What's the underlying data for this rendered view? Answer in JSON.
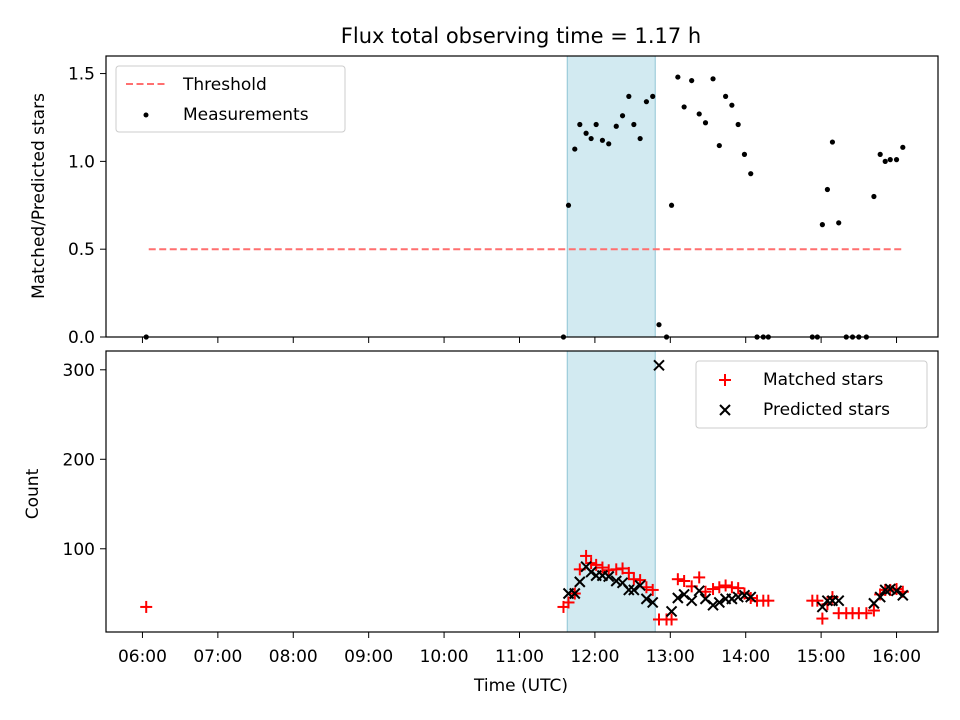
{
  "title": "Flux total observing time = 1.17 h",
  "colors": {
    "threshold": "#ff6f6f",
    "measurement": "#000000",
    "matched": "#ff0000",
    "predicted": "#000000",
    "highlight": "#add8e6"
  },
  "chart_data": [
    {
      "type": "scatter",
      "panel": "top",
      "xlabel": "",
      "ylabel": "Matched/Predicted stars",
      "xlim": [
        "05:31",
        "16:33"
      ],
      "ylim": [
        0.0,
        1.6
      ],
      "yticks": [
        0.0,
        0.5,
        1.0,
        1.5
      ],
      "ytick_labels": [
        "0.0",
        "0.5",
        "1.0",
        "1.5"
      ],
      "legend_position": "upper left",
      "highlight_span": [
        "11:38",
        "12:48"
      ],
      "threshold": {
        "name": "Threshold",
        "value": 0.5,
        "x_range": [
          "06:05",
          "16:05"
        ],
        "style": "dashed"
      },
      "series": [
        {
          "name": "Measurements",
          "points": [
            [
              "06:03",
              0.0
            ],
            [
              "11:35",
              0.0
            ],
            [
              "11:39",
              0.75
            ],
            [
              "11:44",
              1.07
            ],
            [
              "11:48",
              1.21
            ],
            [
              "11:53",
              1.16
            ],
            [
              "11:57",
              1.13
            ],
            [
              "12:01",
              1.21
            ],
            [
              "12:06",
              1.12
            ],
            [
              "12:11",
              1.1
            ],
            [
              "12:17",
              1.2
            ],
            [
              "12:22",
              1.26
            ],
            [
              "12:27",
              1.37
            ],
            [
              "12:31",
              1.21
            ],
            [
              "12:36",
              1.13
            ],
            [
              "12:41",
              1.34
            ],
            [
              "12:46",
              1.37
            ],
            [
              "12:51",
              0.07
            ],
            [
              "12:57",
              0.0
            ],
            [
              "13:01",
              0.75
            ],
            [
              "13:06",
              1.48
            ],
            [
              "13:11",
              1.31
            ],
            [
              "13:17",
              1.46
            ],
            [
              "13:23",
              1.27
            ],
            [
              "13:28",
              1.22
            ],
            [
              "13:34",
              1.47
            ],
            [
              "13:39",
              1.09
            ],
            [
              "13:44",
              1.37
            ],
            [
              "13:49",
              1.32
            ],
            [
              "13:54",
              1.21
            ],
            [
              "13:59",
              1.04
            ],
            [
              "14:04",
              0.93
            ],
            [
              "14:09",
              0.0
            ],
            [
              "14:14",
              0.0
            ],
            [
              "14:18",
              0.0
            ],
            [
              "14:53",
              0.0
            ],
            [
              "14:57",
              0.0
            ],
            [
              "15:01",
              0.64
            ],
            [
              "15:05",
              0.84
            ],
            [
              "15:09",
              1.11
            ],
            [
              "15:14",
              0.65
            ],
            [
              "15:20",
              0.0
            ],
            [
              "15:25",
              0.0
            ],
            [
              "15:30",
              0.0
            ],
            [
              "15:36",
              0.0
            ],
            [
              "15:42",
              0.8
            ],
            [
              "15:47",
              1.04
            ],
            [
              "15:51",
              1.0
            ],
            [
              "15:55",
              1.01
            ],
            [
              "16:00",
              1.01
            ],
            [
              "16:05",
              1.08
            ]
          ]
        }
      ]
    },
    {
      "type": "scatter",
      "panel": "bottom",
      "xlabel": "Time (UTC)",
      "ylabel": "Count",
      "xlim": [
        "05:31",
        "16:33"
      ],
      "ylim": [
        7,
        321
      ],
      "yticks": [
        100,
        200,
        300
      ],
      "ytick_labels": [
        "100",
        "200",
        "300"
      ],
      "xticks": [
        "06:00",
        "07:00",
        "08:00",
        "09:00",
        "10:00",
        "11:00",
        "12:00",
        "13:00",
        "14:00",
        "15:00",
        "16:00"
      ],
      "legend_position": "upper right",
      "highlight_span": [
        "11:38",
        "12:48"
      ],
      "series": [
        {
          "name": "Matched stars",
          "marker": "+",
          "points": [
            [
              "06:03",
              35
            ],
            [
              "11:35",
              35
            ],
            [
              "11:39",
              40
            ],
            [
              "11:44",
              50
            ],
            [
              "11:48",
              77
            ],
            [
              "11:53",
              92
            ],
            [
              "11:57",
              84
            ],
            [
              "12:01",
              82
            ],
            [
              "12:06",
              79
            ],
            [
              "12:11",
              76
            ],
            [
              "12:17",
              77
            ],
            [
              "12:22",
              78
            ],
            [
              "12:27",
              73
            ],
            [
              "12:31",
              66
            ],
            [
              "12:36",
              65
            ],
            [
              "12:41",
              57
            ],
            [
              "12:46",
              54
            ],
            [
              "12:51",
              21
            ],
            [
              "12:57",
              21
            ],
            [
              "13:01",
              21
            ],
            [
              "13:06",
              66
            ],
            [
              "13:11",
              64
            ],
            [
              "13:17",
              58
            ],
            [
              "13:23",
              68
            ],
            [
              "13:28",
              52
            ],
            [
              "13:34",
              55
            ],
            [
              "13:39",
              57
            ],
            [
              "13:44",
              59
            ],
            [
              "13:49",
              57
            ],
            [
              "13:54",
              56
            ],
            [
              "13:59",
              50
            ],
            [
              "14:04",
              45
            ],
            [
              "14:09",
              42
            ],
            [
              "14:14",
              42
            ],
            [
              "14:18",
              42
            ],
            [
              "14:53",
              42
            ],
            [
              "14:57",
              42
            ],
            [
              "15:01",
              22
            ],
            [
              "15:05",
              38
            ],
            [
              "15:09",
              46
            ],
            [
              "15:14",
              28
            ],
            [
              "15:20",
              28
            ],
            [
              "15:25",
              28
            ],
            [
              "15:30",
              28
            ],
            [
              "15:36",
              28
            ],
            [
              "15:42",
              31
            ],
            [
              "15:47",
              49
            ],
            [
              "15:51",
              54
            ],
            [
              "15:55",
              54
            ],
            [
              "16:00",
              55
            ],
            [
              "16:05",
              52
            ]
          ]
        },
        {
          "name": "Predicted stars",
          "marker": "x",
          "points": [
            [
              "11:39",
              50
            ],
            [
              "11:44",
              50
            ],
            [
              "11:48",
              63
            ],
            [
              "11:53",
              80
            ],
            [
              "11:57",
              74
            ],
            [
              "12:01",
              70
            ],
            [
              "12:06",
              70
            ],
            [
              "12:11",
              69
            ],
            [
              "12:17",
              64
            ],
            [
              "12:22",
              62
            ],
            [
              "12:27",
              54
            ],
            [
              "12:31",
              54
            ],
            [
              "12:36",
              59
            ],
            [
              "12:41",
              44
            ],
            [
              "12:46",
              40
            ],
            [
              "12:51",
              305
            ],
            [
              "13:01",
              30
            ],
            [
              "13:06",
              45
            ],
            [
              "13:11",
              49
            ],
            [
              "13:17",
              42
            ],
            [
              "13:23",
              53
            ],
            [
              "13:28",
              44
            ],
            [
              "13:34",
              37
            ],
            [
              "13:39",
              40
            ],
            [
              "13:44",
              44
            ],
            [
              "13:49",
              44
            ],
            [
              "13:54",
              46
            ],
            [
              "13:59",
              48
            ],
            [
              "14:04",
              46
            ],
            [
              "15:01",
              35
            ],
            [
              "15:05",
              42
            ],
            [
              "15:09",
              42
            ],
            [
              "15:14",
              42
            ],
            [
              "15:42",
              39
            ],
            [
              "15:47",
              46
            ],
            [
              "15:51",
              54
            ],
            [
              "15:55",
              55
            ],
            [
              "16:00",
              53
            ],
            [
              "16:05",
              48
            ]
          ]
        }
      ]
    }
  ]
}
